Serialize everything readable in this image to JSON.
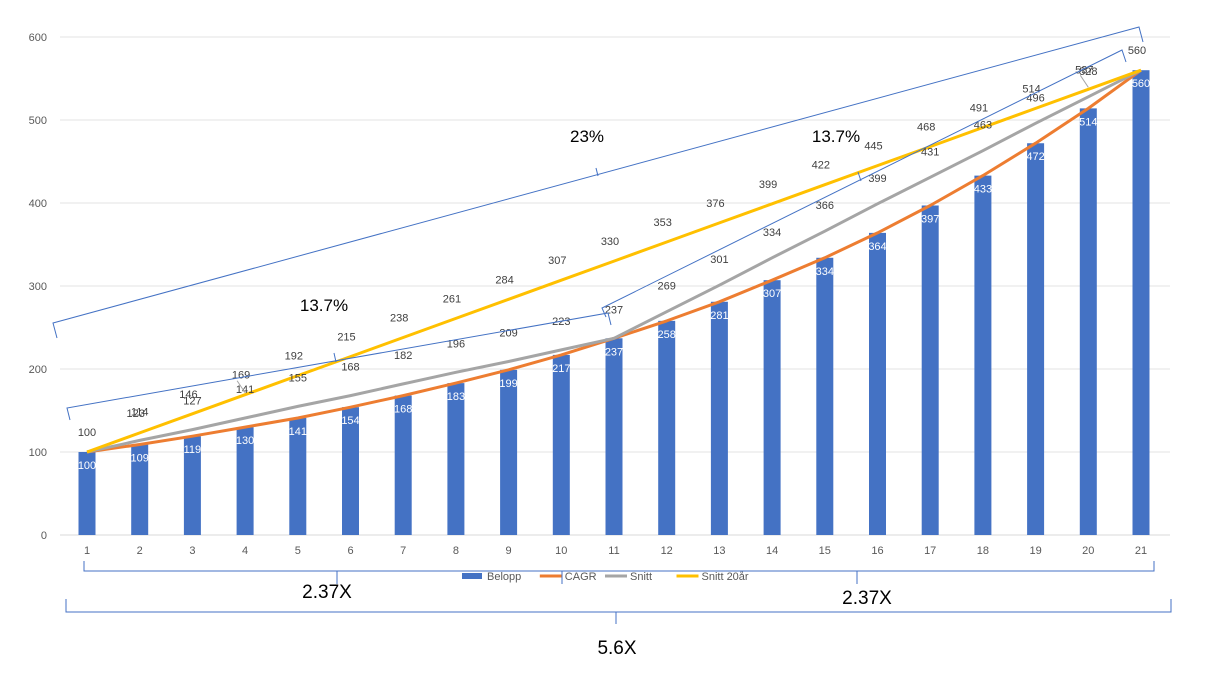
{
  "chart_data": {
    "type": "bar",
    "title": "",
    "xlabel": "",
    "ylabel": "",
    "ylim": [
      0,
      600
    ],
    "yticks": [
      0,
      100,
      200,
      300,
      400,
      500,
      600
    ],
    "grid": true,
    "legend": "bottom",
    "categories": [
      "1",
      "2",
      "3",
      "4",
      "5",
      "6",
      "7",
      "8",
      "9",
      "10",
      "11",
      "12",
      "13",
      "14",
      "15",
      "16",
      "17",
      "18",
      "19",
      "20",
      "21"
    ],
    "series": [
      {
        "name": "Belopp",
        "kind": "bar",
        "color": "#4472C4",
        "values": [
          100,
          109,
          119,
          130,
          141,
          154,
          168,
          183,
          199,
          217,
          237,
          258,
          281,
          307,
          334,
          364,
          397,
          433,
          472,
          514,
          560
        ]
      },
      {
        "name": "CAGR",
        "kind": "line",
        "color": "#ED7D31",
        "values": [
          100,
          109,
          119,
          130,
          141,
          154,
          168,
          183,
          199,
          217,
          237,
          258,
          281,
          307,
          334,
          364,
          397,
          433,
          472,
          514,
          560
        ]
      },
      {
        "name": "Snitt",
        "kind": "line",
        "color": "#A5A5A5",
        "values": [
          100,
          114,
          127,
          141,
          155,
          168,
          182,
          196,
          209,
          223,
          237,
          269,
          301,
          334,
          366,
          399,
          431,
          463,
          496,
          528,
          560
        ]
      },
      {
        "name": "Snitt 20år",
        "kind": "line",
        "color": "#FFC000",
        "values": [
          100,
          123,
          146,
          169,
          192,
          215,
          238,
          261,
          284,
          307,
          330,
          353,
          376,
          399,
          422,
          445,
          468,
          491,
          514,
          537,
          560
        ]
      }
    ],
    "annotations": [
      {
        "text": "23%",
        "kind": "rate",
        "from": 1,
        "to": 21
      },
      {
        "text": "13.7%",
        "kind": "rate",
        "from": 1,
        "to": 11
      },
      {
        "text": "13.7%",
        "kind": "rate",
        "from": 11,
        "to": 21
      },
      {
        "text": "2.37X",
        "kind": "multiple",
        "from": 1,
        "to": 11
      },
      {
        "text": "2.37X",
        "kind": "multiple",
        "from": 11,
        "to": 21
      },
      {
        "text": "5.6X",
        "kind": "multiple",
        "from": 1,
        "to": 21
      }
    ]
  }
}
